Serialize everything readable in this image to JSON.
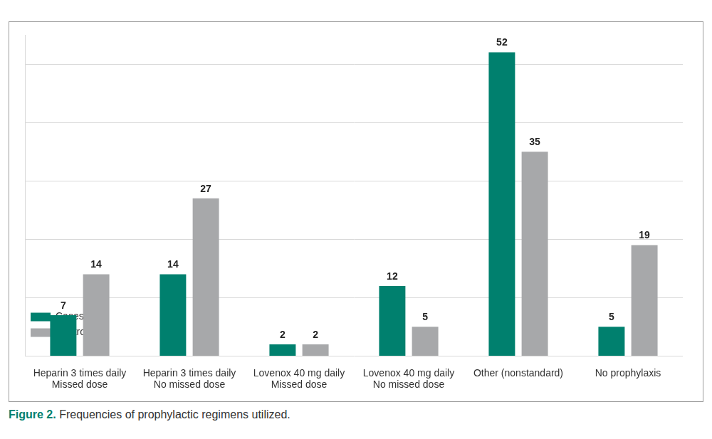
{
  "chart_data": {
    "type": "bar",
    "title": "Figure 2. Frequencies of prophylactic regimens utilized.",
    "categories": [
      [
        "Heparin 3 times daily",
        "Missed dose"
      ],
      [
        "Heparin 3 times daily",
        "No missed dose"
      ],
      [
        "Lovenox 40 mg daily",
        "Missed dose"
      ],
      [
        "Lovenox 40 mg daily",
        "No missed dose"
      ],
      [
        "Other (nonstandard)"
      ],
      [
        "No prophylaxis"
      ]
    ],
    "series": [
      {
        "name": "Cases",
        "color": "#00806e",
        "values": [
          7,
          14,
          2,
          12,
          52,
          5
        ]
      },
      {
        "name": "Controls",
        "color": "#a7a8aa",
        "values": [
          14,
          27,
          2,
          5,
          35,
          19
        ]
      }
    ],
    "ylim": [
      0,
      55
    ],
    "yticks": [
      0,
      10,
      20,
      30,
      40,
      50
    ],
    "grid": true,
    "legend": "upper right",
    "data_labels": true,
    "tick_labels": "x"
  }
}
